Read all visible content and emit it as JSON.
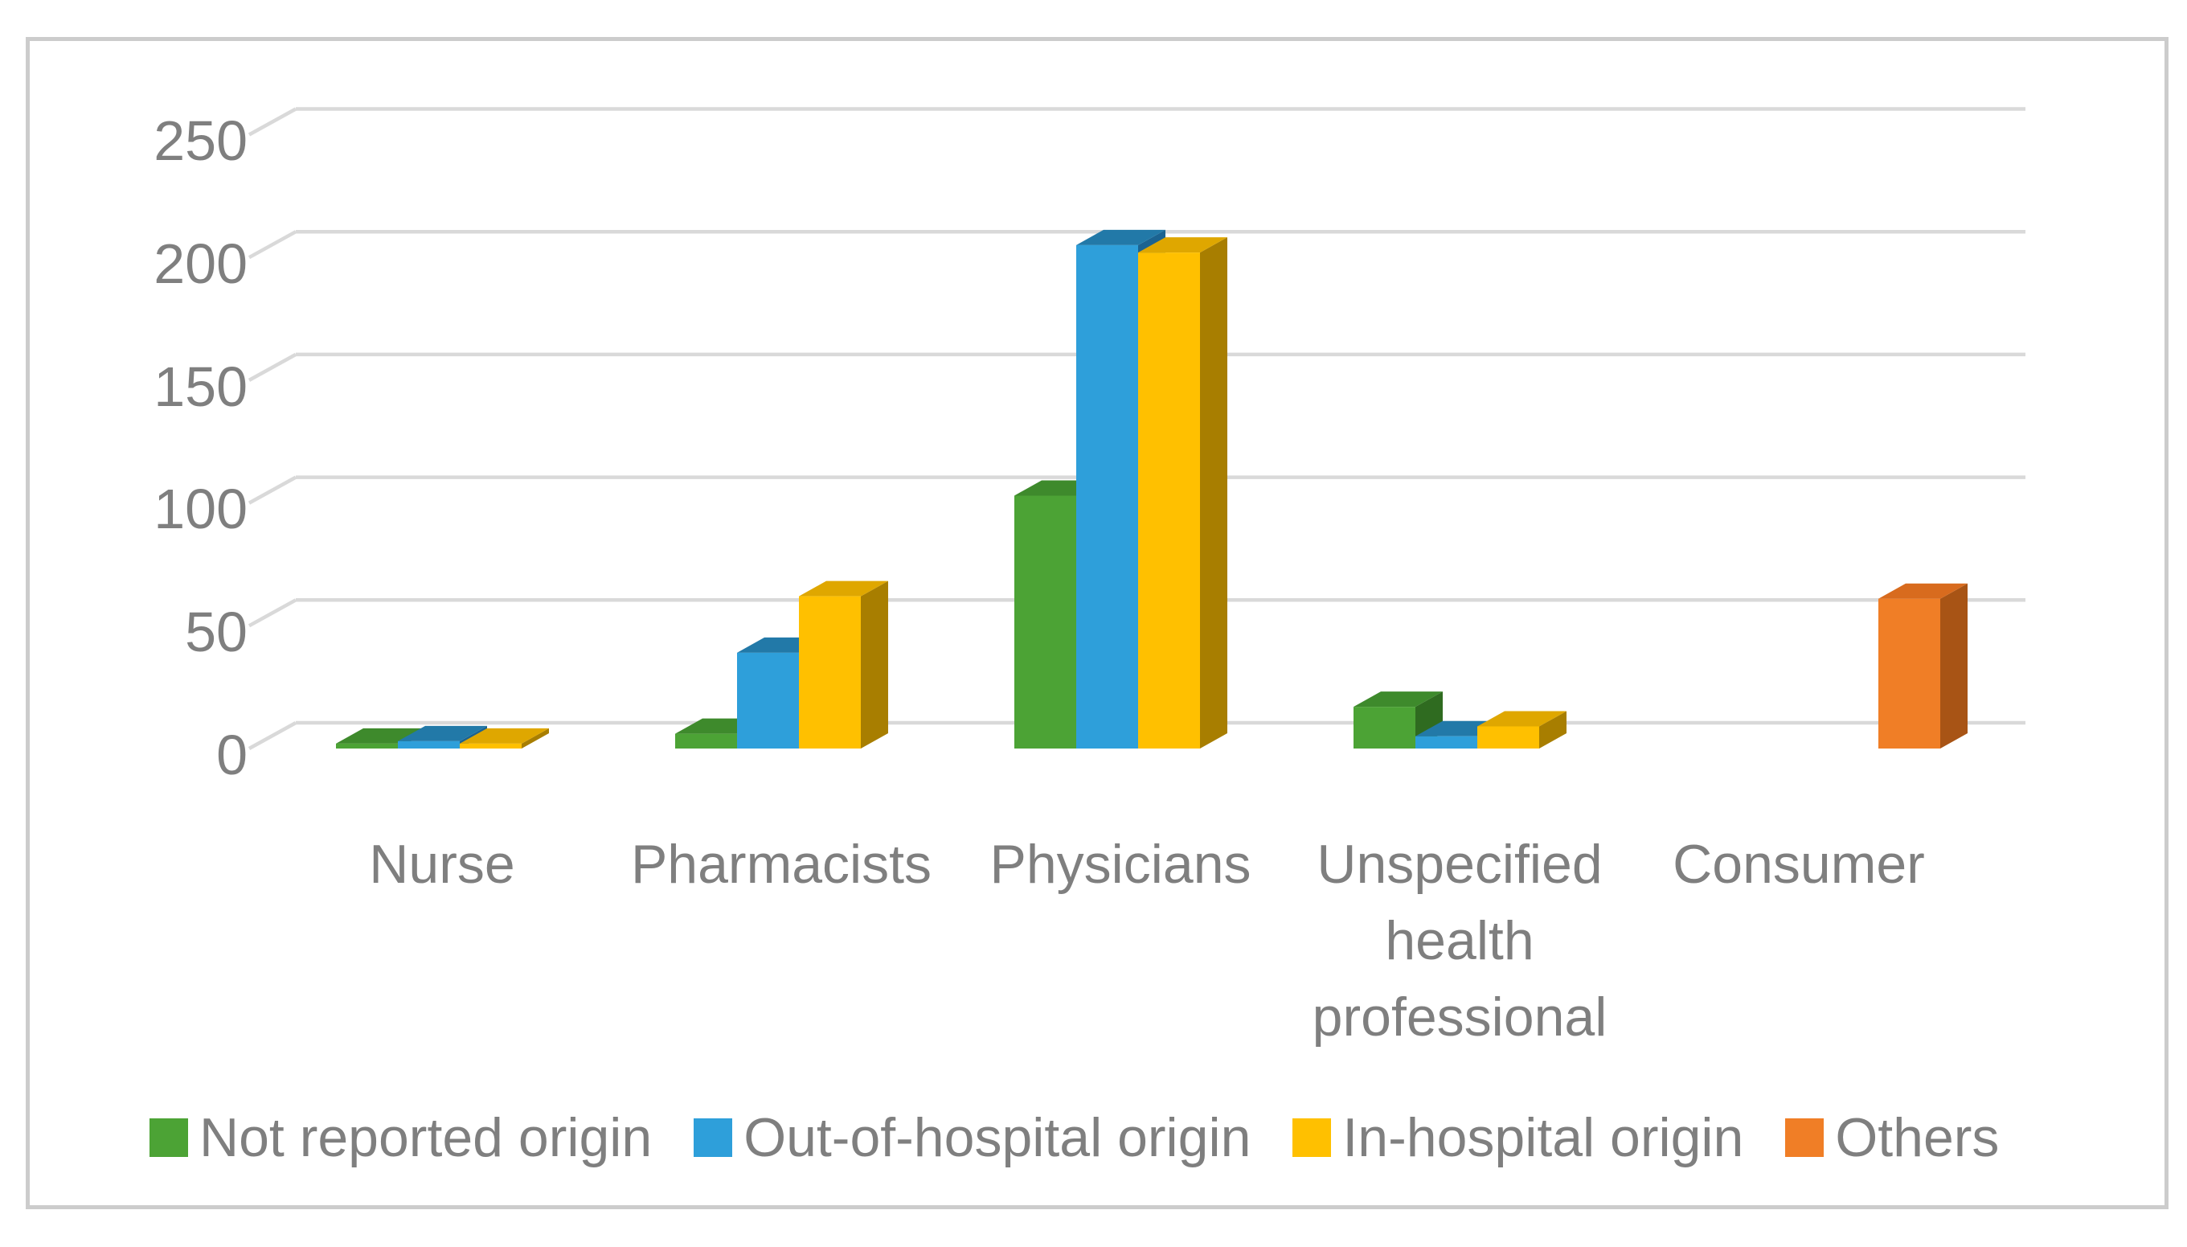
{
  "figure": {
    "kind": "3d-clustered-column-chart",
    "background_color": "#ffffff",
    "frame_color": "#cccccc",
    "gridline_color": "#d9d9d9",
    "text_color": "#7f7f7f"
  },
  "chart_data": {
    "type": "bar",
    "style": "3d-clustered-column",
    "title": "",
    "xlabel": "",
    "ylabel": "",
    "ylim": [
      0,
      250
    ],
    "grid": true,
    "legend_position": "bottom",
    "y_ticks": [
      0,
      50,
      100,
      150,
      200,
      250
    ],
    "y_tick_labels": [
      "0",
      "50",
      "100",
      "150",
      "200",
      "250"
    ],
    "categories": [
      "Nurse",
      "Pharmacists",
      "Physicians",
      "Unspecified health professional",
      "Consumer"
    ],
    "series": [
      {
        "name": "Not reported origin",
        "color": "#4ca335",
        "color_top": "#3e8a2c",
        "color_side": "#2f6b20",
        "values": [
          2,
          6,
          103,
          17,
          0
        ]
      },
      {
        "name": "Out-of-hospital origin",
        "color": "#2e9fda",
        "color_top": "#2279a8",
        "color_side": "#1b6391",
        "values": [
          3,
          39,
          205,
          5,
          0
        ]
      },
      {
        "name": "In-hospital origin",
        "color": "#ffc000",
        "color_top": "#dfa700",
        "color_side": "#a87e00",
        "values": [
          2,
          62,
          202,
          9,
          0
        ]
      },
      {
        "name": "Others",
        "color": "#f07e26",
        "color_top": "#d86b1e",
        "color_side": "#a85415",
        "values": [
          0,
          0,
          0,
          0,
          61
        ]
      }
    ]
  }
}
